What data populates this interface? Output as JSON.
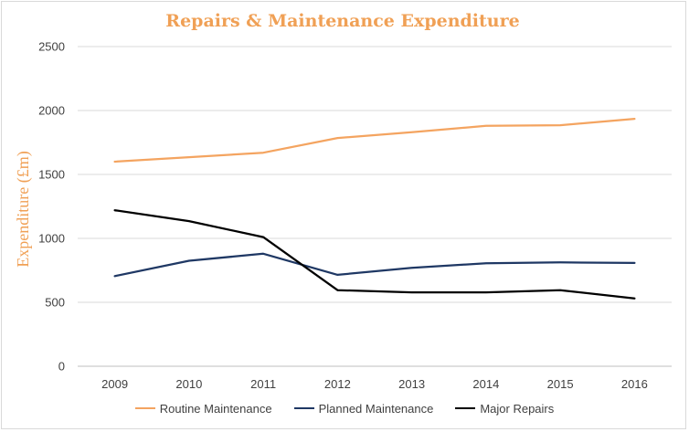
{
  "chart_data": {
    "type": "line",
    "title": "Repairs & Maintenance Expenditure",
    "xlabel": "",
    "ylabel": "Expenditure (£m)",
    "x": [
      "2009",
      "2010",
      "2011",
      "2012",
      "2013",
      "2014",
      "2015",
      "2016"
    ],
    "ylim": [
      0,
      2500
    ],
    "yticks": [
      "0",
      "500",
      "1000",
      "1500",
      "2000",
      "2500"
    ],
    "grid": true,
    "legend_position": "bottom",
    "series": [
      {
        "name": "Routine Maintenance",
        "color": "#f4a460",
        "values": [
          1600,
          1635,
          1670,
          1785,
          1830,
          1880,
          1885,
          1935
        ]
      },
      {
        "name": "Planned Maintenance",
        "color": "#1f3864",
        "values": [
          705,
          825,
          880,
          715,
          770,
          805,
          812,
          808
        ]
      },
      {
        "name": "Major Repairs",
        "color": "#000000",
        "values": [
          1220,
          1135,
          1010,
          595,
          578,
          578,
          595,
          530
        ]
      }
    ],
    "title_color": "#f0a055",
    "ylabel_color": "#f0a055"
  }
}
